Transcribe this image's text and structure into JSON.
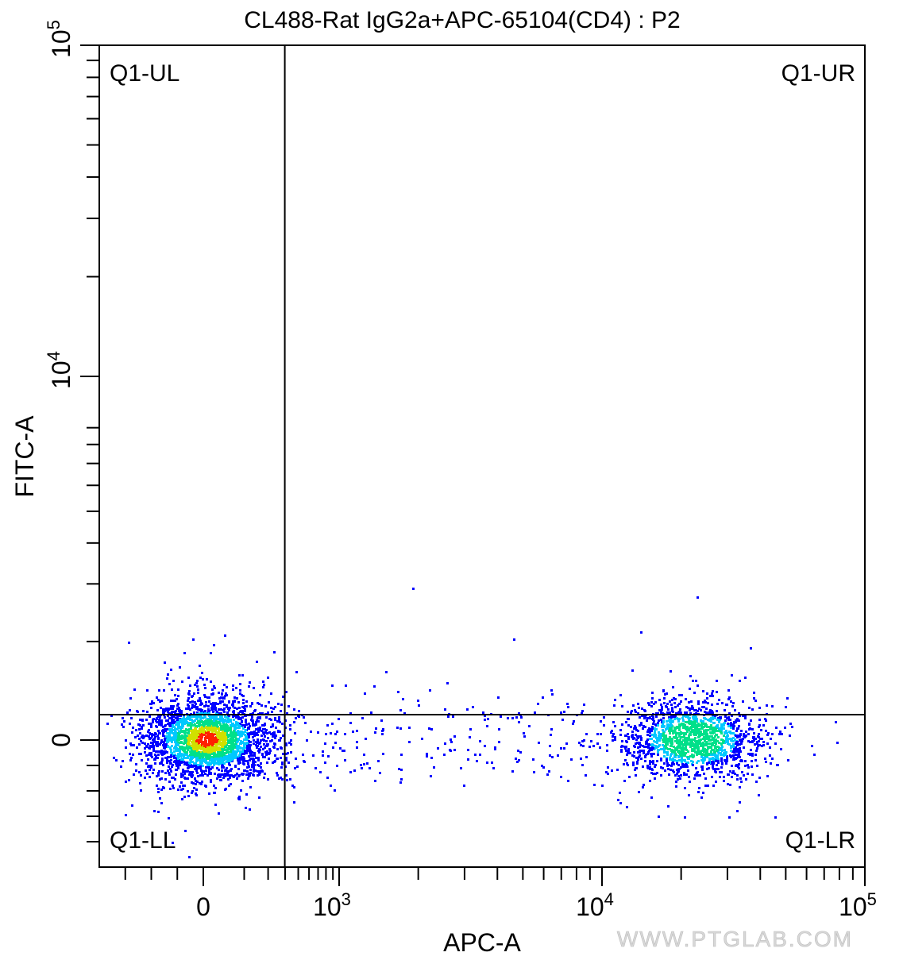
{
  "chart_data": {
    "type": "scatter",
    "title": "CL488-Rat IgG2a+APC-65104(CD4) : P2",
    "xlabel": "APC-A",
    "ylabel": "FITC-A",
    "x_scale": "biexponential",
    "y_scale": "biexponential",
    "xlim": [
      -400,
      100000
    ],
    "ylim": [
      -500,
      100000
    ],
    "x_ticks": [
      {
        "value": 0,
        "label": "0"
      },
      {
        "value": 1000,
        "label": "10",
        "exp": "3"
      },
      {
        "value": 10000,
        "label": "10",
        "exp": "4"
      },
      {
        "value": 100000,
        "label": "10",
        "exp": "5"
      }
    ],
    "y_ticks": [
      {
        "value": 0,
        "label": "0"
      },
      {
        "value": 10000,
        "label": "10",
        "exp": "4"
      },
      {
        "value": 100000,
        "label": "10",
        "exp": "5"
      }
    ],
    "gate": {
      "x": 600,
      "y": 700
    },
    "quadrants": {
      "UL": "Q1-UL",
      "UR": "Q1-UR",
      "LL": "Q1-LL",
      "LR": "Q1-LR"
    },
    "populations": [
      {
        "name": "",
        "center": [
          20,
          50
        ],
        "count": 2600
      },
      {
        "name": "",
        "center": [
          22000,
          50
        ],
        "count": 1500
      }
    ],
    "grid": false,
    "legend": "none",
    "colormap": [
      "#0000ff",
      "#00c8ff",
      "#00e08a",
      "#d0e000",
      "#ff2000"
    ]
  },
  "watermark": "WWW.PTGLAB.COM"
}
